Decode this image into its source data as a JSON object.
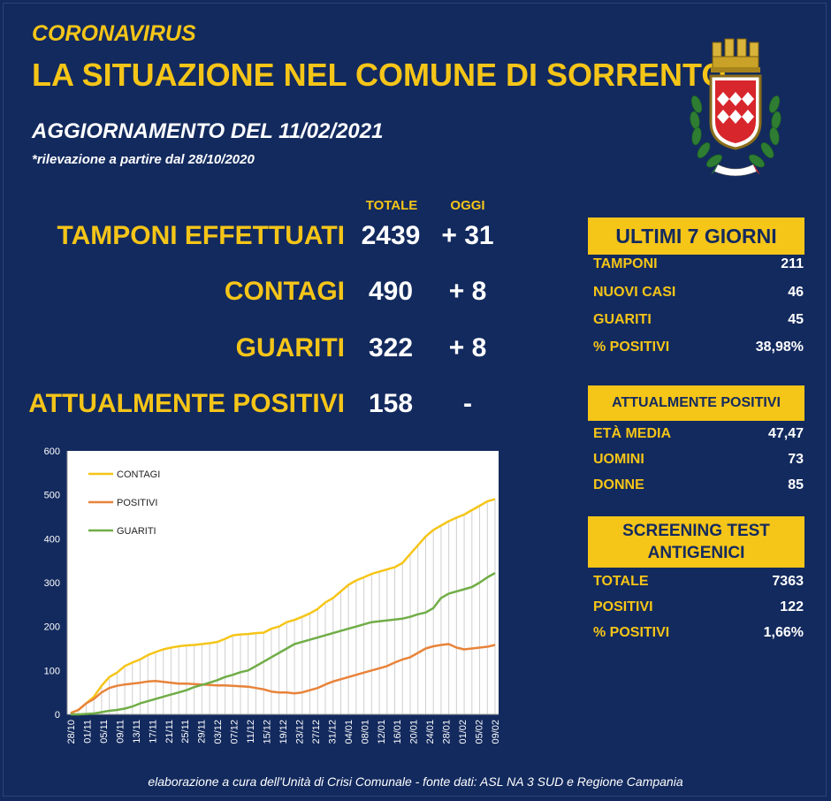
{
  "header": {
    "kicker": "CORONAVIRUS",
    "title": "LA SITUAZIONE NEL COMUNE DI SORRENTO",
    "update": "AGGIORNAMENTO DEL 11/02/2021",
    "note": "*rilevazione a partire dal 28/10/2020"
  },
  "columns": {
    "total": "TOTALE",
    "today": "OGGI"
  },
  "stats": [
    {
      "label": "TAMPONI EFFETTUATI",
      "total": "2439",
      "today": "+ 31"
    },
    {
      "label": "CONTAGI",
      "total": "490",
      "today": "+ 8"
    },
    {
      "label": "GUARITI",
      "total": "322",
      "today": "+ 8"
    },
    {
      "label": "ATTUALMENTE POSITIVI",
      "total": "158",
      "today": "-"
    }
  ],
  "last7": {
    "title": "ULTIMI 7 GIORNI",
    "rows": [
      {
        "label": "TAMPONI",
        "value": "211"
      },
      {
        "label": "NUOVI CASI",
        "value": "46"
      },
      {
        "label": "GUARITI",
        "value": "45"
      },
      {
        "label": "% POSITIVI",
        "value": "38,98%"
      }
    ]
  },
  "positives": {
    "title": "ATTUALMENTE POSITIVI",
    "rows": [
      {
        "label": "ETÀ MEDIA",
        "value": "47,47"
      },
      {
        "label": "UOMINI",
        "value": "73"
      },
      {
        "label": "DONNE",
        "value": "85"
      }
    ]
  },
  "screening": {
    "title_line1": "SCREENING TEST",
    "title_line2": "ANTIGENICI",
    "rows": [
      {
        "label": "TOTALE",
        "value": "7363"
      },
      {
        "label": "POSITIVI",
        "value": "122"
      },
      {
        "label": "% POSITIVI",
        "value": "1,66%"
      }
    ]
  },
  "footer": "elaborazione a cura dell'Unità di Crisi Comunale - fonte dati: ASL NA 3 SUD e Regione Campania",
  "colors": {
    "background": "#132a5e",
    "accent": "#f5c518",
    "contagi": "#f5c518",
    "positivi": "#e8833a",
    "guariti": "#70ad47"
  },
  "chart_data": {
    "type": "line",
    "title": "",
    "xlabel": "",
    "ylabel": "",
    "ylim": [
      0,
      600
    ],
    "yticks": [
      0,
      100,
      200,
      300,
      400,
      500,
      600
    ],
    "grid": "vertical drop lines",
    "legend": "top-left",
    "x_tick_labels": [
      "28/10",
      "01/11",
      "05/11",
      "09/11",
      "13/11",
      "17/11",
      "21/11",
      "25/11",
      "29/11",
      "03/12",
      "07/12",
      "11/12",
      "15/12",
      "19/12",
      "23/12",
      "27/12",
      "31/12",
      "04/01",
      "08/01",
      "12/01",
      "16/01",
      "20/01",
      "24/01",
      "28/01",
      "01/02",
      "05/02",
      "09/02"
    ],
    "series": [
      {
        "name": "CONTAGI",
        "values": [
          3,
          10,
          25,
          40,
          65,
          85,
          95,
          110,
          118,
          125,
          135,
          142,
          148,
          152,
          155,
          157,
          158,
          160,
          162,
          165,
          172,
          180,
          182,
          183,
          185,
          186,
          195,
          200,
          210,
          215,
          222,
          230,
          240,
          255,
          265,
          280,
          295,
          305,
          312,
          320,
          325,
          330,
          335,
          345,
          365,
          385,
          405,
          420,
          430,
          440,
          448,
          455,
          465,
          475,
          485,
          490
        ]
      },
      {
        "name": "POSITIVI",
        "values": [
          3,
          10,
          25,
          35,
          50,
          60,
          65,
          68,
          70,
          72,
          75,
          76,
          74,
          72,
          70,
          70,
          69,
          68,
          67,
          66,
          66,
          65,
          64,
          63,
          60,
          57,
          52,
          50,
          50,
          48,
          50,
          55,
          60,
          68,
          75,
          80,
          85,
          90,
          95,
          100,
          105,
          110,
          118,
          125,
          130,
          140,
          150,
          155,
          158,
          160,
          152,
          148,
          150,
          152,
          154,
          158
        ]
      },
      {
        "name": "GUARITI",
        "values": [
          0,
          0,
          1,
          2,
          5,
          8,
          10,
          13,
          18,
          25,
          30,
          35,
          40,
          45,
          50,
          55,
          62,
          67,
          72,
          78,
          85,
          90,
          96,
          100,
          110,
          120,
          130,
          140,
          150,
          160,
          165,
          170,
          175,
          180,
          185,
          190,
          195,
          200,
          205,
          210,
          212,
          214,
          216,
          218,
          222,
          228,
          232,
          242,
          265,
          275,
          280,
          285,
          290,
          300,
          312,
          322
        ]
      }
    ]
  }
}
